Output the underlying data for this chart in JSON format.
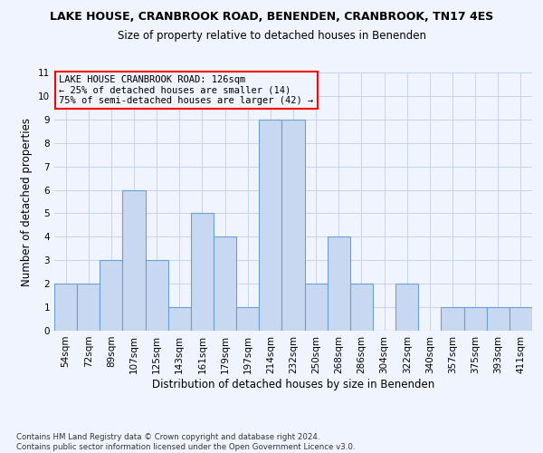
{
  "title": "LAKE HOUSE, CRANBROOK ROAD, BENENDEN, CRANBROOK, TN17 4ES",
  "subtitle": "Size of property relative to detached houses in Benenden",
  "xlabel": "Distribution of detached houses by size in Benenden",
  "ylabel": "Number of detached properties",
  "categories": [
    "54sqm",
    "72sqm",
    "89sqm",
    "107sqm",
    "125sqm",
    "143sqm",
    "161sqm",
    "179sqm",
    "197sqm",
    "214sqm",
    "232sqm",
    "250sqm",
    "268sqm",
    "286sqm",
    "304sqm",
    "322sqm",
    "340sqm",
    "357sqm",
    "375sqm",
    "393sqm",
    "411sqm"
  ],
  "values": [
    2,
    2,
    3,
    6,
    3,
    1,
    5,
    4,
    1,
    9,
    9,
    2,
    4,
    2,
    0,
    2,
    0,
    1,
    1,
    1,
    1
  ],
  "bar_color": "#c8d8f0",
  "bar_edge_color": "#6a9fd8",
  "ylim": [
    0,
    11
  ],
  "yticks": [
    0,
    1,
    2,
    3,
    4,
    5,
    6,
    7,
    8,
    9,
    10,
    11
  ],
  "annotation_text": "LAKE HOUSE CRANBROOK ROAD: 126sqm\n← 25% of detached houses are smaller (14)\n75% of semi-detached houses are larger (42) →",
  "footer": "Contains HM Land Registry data © Crown copyright and database right 2024.\nContains public sector information licensed under the Open Government Licence v3.0.",
  "grid_color": "#c8d4e8",
  "background_color": "#f0f4ff",
  "title_fontsize": 9.0,
  "subtitle_fontsize": 8.5,
  "ylabel_fontsize": 8.5,
  "xlabel_fontsize": 8.5,
  "tick_fontsize": 7.5,
  "ann_fontsize": 7.5,
  "footer_fontsize": 6.2
}
